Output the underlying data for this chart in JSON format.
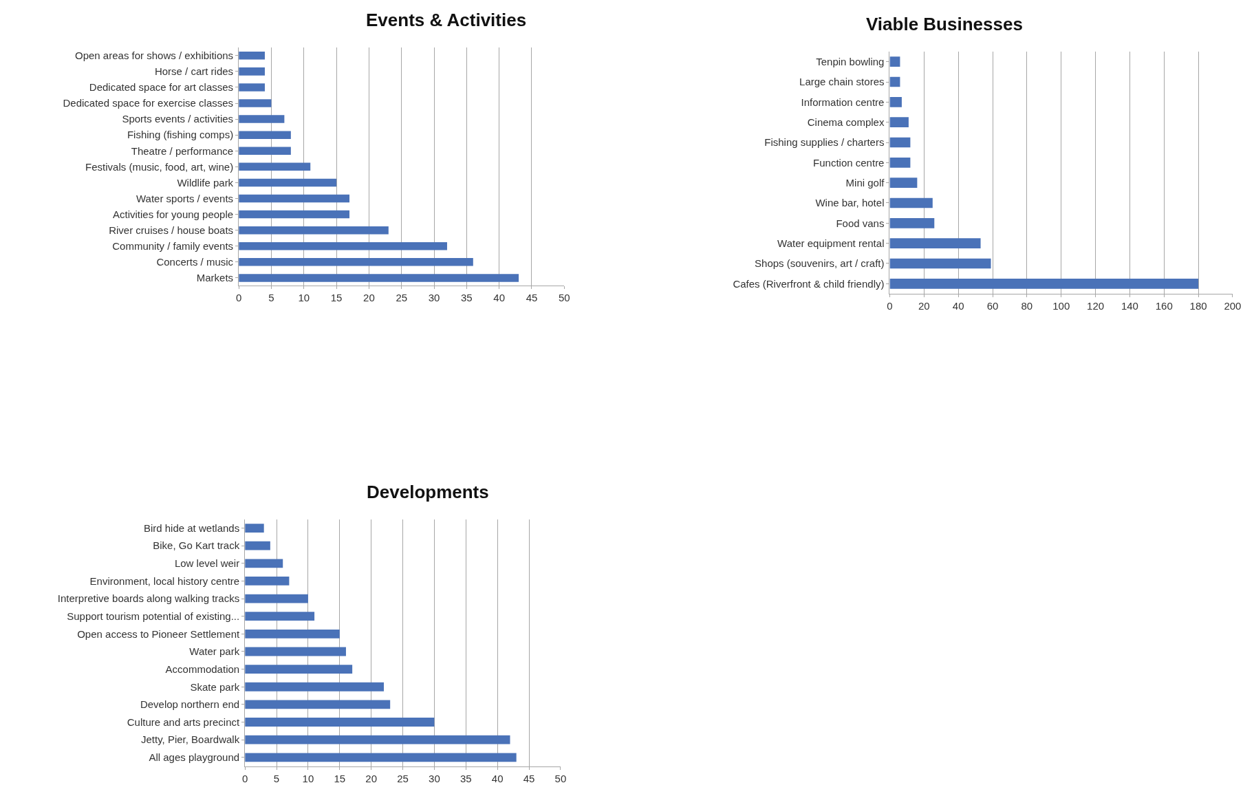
{
  "chart_data": [
    {
      "type": "bar",
      "orientation": "horizontal",
      "title": "Events & Activities",
      "color": "#4a72b8",
      "categories": [
        "Open areas for shows / exhibitions",
        "Horse / cart rides",
        "Dedicated space for art classes",
        "Dedicated space for exercise classes",
        "Sports events / activities",
        "Fishing (fishing comps)",
        "Theatre / performance",
        "Festivals (music, food, art, wine)",
        "Wildlife park",
        "Water sports / events",
        "Activities for young people",
        "River cruises / house boats",
        "Community / family events",
        "Concerts / music",
        "Markets"
      ],
      "values": [
        4,
        4,
        4,
        5,
        7,
        8,
        8,
        11,
        15,
        17,
        17,
        23,
        32,
        36,
        43
      ],
      "xlim": [
        0,
        50
      ],
      "xticks": [
        0,
        5,
        10,
        15,
        20,
        25,
        30,
        35,
        40,
        45,
        50
      ],
      "grid": "x"
    },
    {
      "type": "bar",
      "orientation": "horizontal",
      "title": "Viable Businesses",
      "color": "#4a72b8",
      "categories": [
        "Tenpin bowling",
        "Large chain stores",
        "Information centre",
        "Cinema complex",
        "Fishing supplies / charters",
        "Function centre",
        "Mini golf",
        "Wine bar, hotel",
        "Food vans",
        "Water equipment rental",
        "Shops (souvenirs, art / craft)",
        "Cafes (Riverfront & child friendly)"
      ],
      "values": [
        6,
        6,
        7,
        11,
        12,
        12,
        16,
        25,
        26,
        53,
        59,
        180
      ],
      "xlim": [
        0,
        200
      ],
      "xticks": [
        0,
        20,
        40,
        60,
        80,
        100,
        120,
        140,
        160,
        180,
        200
      ],
      "grid": "x"
    },
    {
      "type": "bar",
      "orientation": "horizontal",
      "title": "Developments",
      "color": "#4a72b8",
      "categories": [
        "Bird hide at wetlands",
        "Bike, Go Kart track",
        "Low level weir",
        "Environment, local history centre",
        "Interpretive boards along walking tracks",
        "Support tourism potential of existing...",
        "Open access to Pioneer Settlement",
        "Water park",
        "Accommodation",
        "Skate park",
        "Develop northern end",
        "Culture and arts precinct",
        "Jetty, Pier, Boardwalk",
        "All ages playground"
      ],
      "values": [
        3,
        4,
        6,
        7,
        10,
        11,
        15,
        16,
        17,
        22,
        23,
        30,
        42,
        43
      ],
      "xlim": [
        0,
        50
      ],
      "xticks": [
        0,
        5,
        10,
        15,
        20,
        25,
        30,
        35,
        40,
        45,
        50
      ],
      "grid": "x"
    }
  ]
}
